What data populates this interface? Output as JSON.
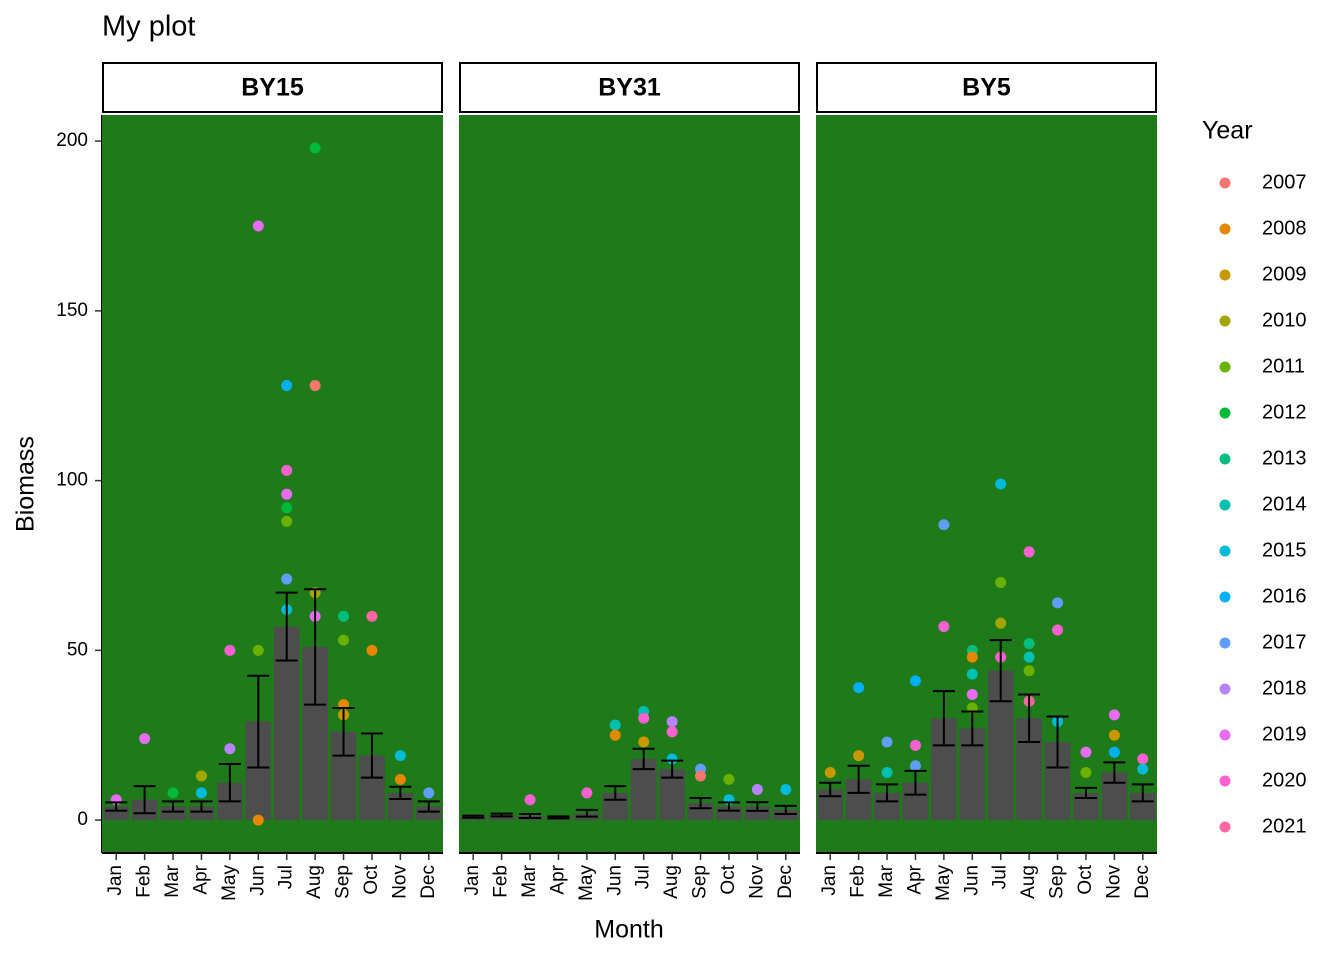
{
  "chart_data": {
    "type": "bar",
    "title": "My plot",
    "x_label": "Month",
    "y_label": "Biomass",
    "categories": [
      "Jan",
      "Feb",
      "Mar",
      "Apr",
      "May",
      "Jun",
      "Jul",
      "Aug",
      "Sep",
      "Oct",
      "Nov",
      "Dec"
    ],
    "ylim": [
      -9.7,
      207.7
    ],
    "yticks": [
      0,
      50,
      100,
      150,
      200
    ],
    "bar_color": "#4d4d4d",
    "panel_color": "#1f7a1a",
    "error_color": "#000000",
    "strip_text_color": "#a01318",
    "legend_title": "Year",
    "years": [
      {
        "name": "2007",
        "color": "#F8766D"
      },
      {
        "name": "2008",
        "color": "#E58700"
      },
      {
        "name": "2009",
        "color": "#C99800"
      },
      {
        "name": "2010",
        "color": "#A3A500"
      },
      {
        "name": "2011",
        "color": "#6BB100"
      },
      {
        "name": "2012",
        "color": "#00BA38"
      },
      {
        "name": "2013",
        "color": "#00BF7D"
      },
      {
        "name": "2014",
        "color": "#00C0AF"
      },
      {
        "name": "2015",
        "color": "#00BCD8"
      },
      {
        "name": "2016",
        "color": "#00B0F6"
      },
      {
        "name": "2017",
        "color": "#619CFF"
      },
      {
        "name": "2018",
        "color": "#B983FF"
      },
      {
        "name": "2019",
        "color": "#E76BF3"
      },
      {
        "name": "2020",
        "color": "#FD61D1"
      },
      {
        "name": "2021",
        "color": "#FF67A4"
      }
    ],
    "facets": [
      {
        "label": "BY15",
        "values": [
          4,
          6,
          4,
          4,
          11,
          29,
          57,
          51,
          26,
          19,
          8,
          4
        ],
        "errors": [
          1.2,
          4,
          1.5,
          1.5,
          5.5,
          13.5,
          10,
          17,
          7,
          6.5,
          1.8,
          1.5
        ],
        "points": [
          {
            "month": 1,
            "year": 12,
            "value": 24
          },
          {
            "month": 5,
            "year": 12,
            "value": 175
          },
          {
            "month": 5,
            "year": 4,
            "value": 50
          },
          {
            "month": 5,
            "year": 1,
            "value": 0
          },
          {
            "month": 6,
            "year": 9,
            "value": 128
          },
          {
            "month": 6,
            "year": 13,
            "value": 103
          },
          {
            "month": 6,
            "year": 12,
            "value": 96
          },
          {
            "month": 6,
            "year": 5,
            "value": 92
          },
          {
            "month": 6,
            "year": 4,
            "value": 88
          },
          {
            "month": 6,
            "year": 10,
            "value": 71
          },
          {
            "month": 6,
            "year": 8,
            "value": 62
          },
          {
            "month": 7,
            "year": 5,
            "value": 198
          },
          {
            "month": 7,
            "year": 0,
            "value": 128
          },
          {
            "month": 7,
            "year": 3,
            "value": 67
          },
          {
            "month": 7,
            "year": 12,
            "value": 60
          },
          {
            "month": 8,
            "year": 6,
            "value": 60
          },
          {
            "month": 8,
            "year": 4,
            "value": 53
          },
          {
            "month": 8,
            "year": 1,
            "value": 34
          },
          {
            "month": 8,
            "year": 2,
            "value": 31
          },
          {
            "month": 9,
            "year": 14,
            "value": 60
          },
          {
            "month": 9,
            "year": 1,
            "value": 50
          },
          {
            "month": 10,
            "year": 8,
            "value": 19
          },
          {
            "month": 10,
            "year": 1,
            "value": 12
          },
          {
            "month": 4,
            "year": 13,
            "value": 50
          },
          {
            "month": 4,
            "year": 11,
            "value": 21
          },
          {
            "month": 3,
            "year": 3,
            "value": 13
          },
          {
            "month": 3,
            "year": 8,
            "value": 8
          },
          {
            "month": 2,
            "year": 5,
            "value": 8
          },
          {
            "month": 0,
            "year": 12,
            "value": 6
          },
          {
            "month": 11,
            "year": 10,
            "value": 8
          }
        ]
      },
      {
        "label": "BY31",
        "values": [
          1,
          1.5,
          1.2,
          0.8,
          2,
          8,
          18,
          15,
          5,
          4,
          4,
          3
        ],
        "errors": [
          0.3,
          0.4,
          0.6,
          0.3,
          1,
          2,
          3,
          2.5,
          1.5,
          1.2,
          1.3,
          1.2
        ],
        "points": [
          {
            "month": 5,
            "year": 7,
            "value": 28
          },
          {
            "month": 5,
            "year": 1,
            "value": 25
          },
          {
            "month": 6,
            "year": 7,
            "value": 32
          },
          {
            "month": 6,
            "year": 13,
            "value": 30
          },
          {
            "month": 6,
            "year": 2,
            "value": 23
          },
          {
            "month": 7,
            "year": 11,
            "value": 29
          },
          {
            "month": 7,
            "year": 13,
            "value": 26
          },
          {
            "month": 7,
            "year": 8,
            "value": 18
          },
          {
            "month": 8,
            "year": 10,
            "value": 15
          },
          {
            "month": 8,
            "year": 0,
            "value": 13
          },
          {
            "month": 9,
            "year": 4,
            "value": 12
          },
          {
            "month": 9,
            "year": 8,
            "value": 6
          },
          {
            "month": 10,
            "year": 11,
            "value": 9
          },
          {
            "month": 11,
            "year": 8,
            "value": 9
          },
          {
            "month": 2,
            "year": 13,
            "value": 6
          },
          {
            "month": 4,
            "year": 13,
            "value": 8
          }
        ]
      },
      {
        "label": "BY5",
        "values": [
          9,
          12,
          8,
          11,
          30,
          27,
          44,
          30,
          23,
          8,
          14,
          8
        ],
        "errors": [
          2,
          4,
          2.5,
          3.5,
          8,
          5,
          9,
          7,
          7.5,
          1.5,
          3,
          2.5
        ],
        "points": [
          {
            "month": 0,
            "year": 2,
            "value": 14
          },
          {
            "month": 1,
            "year": 9,
            "value": 39
          },
          {
            "month": 1,
            "year": 2,
            "value": 19
          },
          {
            "month": 2,
            "year": 10,
            "value": 23
          },
          {
            "month": 2,
            "year": 7,
            "value": 14
          },
          {
            "month": 3,
            "year": 9,
            "value": 41
          },
          {
            "month": 3,
            "year": 13,
            "value": 22
          },
          {
            "month": 3,
            "year": 10,
            "value": 16
          },
          {
            "month": 4,
            "year": 10,
            "value": 87
          },
          {
            "month": 4,
            "year": 13,
            "value": 57
          },
          {
            "month": 5,
            "year": 6,
            "value": 50
          },
          {
            "month": 5,
            "year": 1,
            "value": 48
          },
          {
            "month": 5,
            "year": 7,
            "value": 43
          },
          {
            "month": 5,
            "year": 12,
            "value": 37
          },
          {
            "month": 5,
            "year": 4,
            "value": 33
          },
          {
            "month": 6,
            "year": 8,
            "value": 99
          },
          {
            "month": 6,
            "year": 4,
            "value": 70
          },
          {
            "month": 6,
            "year": 3,
            "value": 58
          },
          {
            "month": 6,
            "year": 13,
            "value": 48
          },
          {
            "month": 7,
            "year": 13,
            "value": 79
          },
          {
            "month": 7,
            "year": 6,
            "value": 52
          },
          {
            "month": 7,
            "year": 7,
            "value": 48
          },
          {
            "month": 7,
            "year": 4,
            "value": 44
          },
          {
            "month": 7,
            "year": 14,
            "value": 35
          },
          {
            "month": 8,
            "year": 10,
            "value": 64
          },
          {
            "month": 8,
            "year": 13,
            "value": 56
          },
          {
            "month": 8,
            "year": 8,
            "value": 29
          },
          {
            "month": 9,
            "year": 12,
            "value": 20
          },
          {
            "month": 9,
            "year": 4,
            "value": 14
          },
          {
            "month": 10,
            "year": 12,
            "value": 31
          },
          {
            "month": 10,
            "year": 2,
            "value": 25
          },
          {
            "month": 10,
            "year": 9,
            "value": 20
          },
          {
            "month": 11,
            "year": 13,
            "value": 18
          },
          {
            "month": 11,
            "year": 8,
            "value": 15
          }
        ]
      }
    ]
  }
}
